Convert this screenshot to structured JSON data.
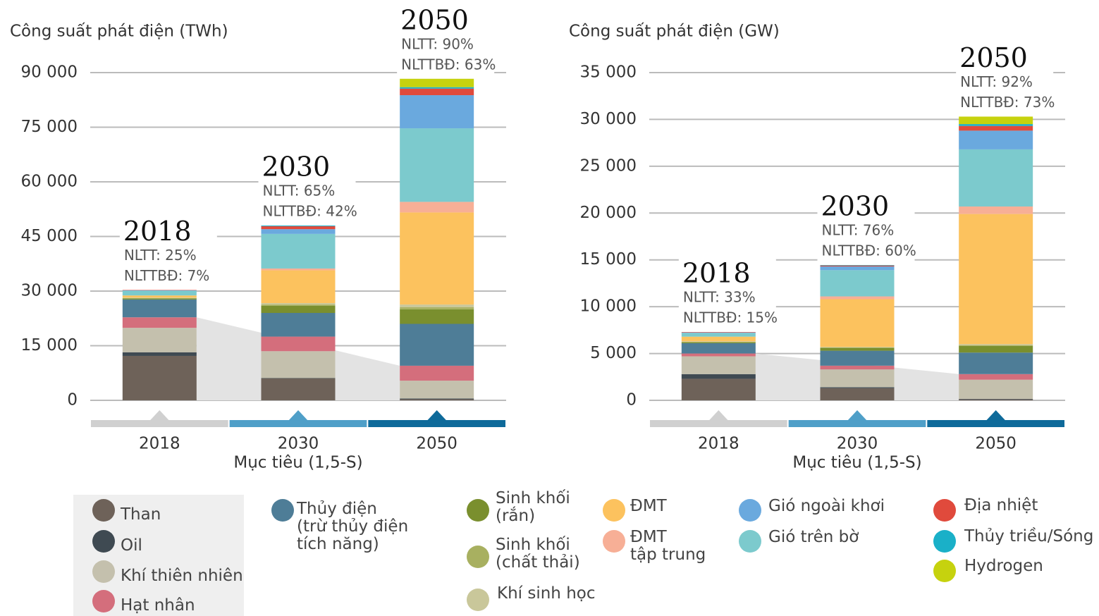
{
  "chart_data": [
    {
      "type": "bar",
      "stacked": true,
      "title": "Công suất phát điện (TWh)",
      "xlabel": "Mục tiêu (1,5-S)",
      "categories": [
        "2018",
        "2030",
        "2050"
      ],
      "ylim": [
        0,
        90000
      ],
      "yticks": [
        0,
        {
          "value": 15000,
          "label": "15 000"
        },
        {
          "value": 30000,
          "label": "30 000"
        },
        {
          "value": 45000,
          "label": "45 000"
        },
        {
          "value": 60000,
          "label": "60 000"
        },
        {
          "value": 75000,
          "label": "75 000"
        },
        {
          "value": 90000,
          "label": "90 000"
        }
      ],
      "grid": true,
      "annotations": [
        {
          "title": "2018",
          "lines": [
            "NLTT: 25%",
            "NLTTBĐ: 7%"
          ]
        },
        {
          "title": "2030",
          "lines": [
            "NLTT: 65%",
            "NLTTBĐ: 42%"
          ]
        },
        {
          "title": "2050",
          "lines": [
            "NLTT: 90%",
            "NLTTBĐ: 63%"
          ]
        }
      ],
      "series": [
        {
          "name": "Than",
          "color": "#6e6259",
          "values": [
            12200,
            6000,
            300
          ]
        },
        {
          "name": "Oil",
          "color": "#3f4a52",
          "values": [
            1000,
            100,
            200
          ]
        },
        {
          "name": "Khí thiên nhiên",
          "color": "#c4c0ad",
          "values": [
            6700,
            7400,
            4900
          ]
        },
        {
          "name": "Hạt nhân",
          "color": "#d46e7c",
          "values": [
            2900,
            4000,
            4100
          ]
        },
        {
          "name": "Thủy điện\n(trừ thủy điện\ntích năng)",
          "color": "#4e7d97",
          "values": [
            4900,
            6500,
            11500
          ]
        },
        {
          "name": "Sinh khối\n(rắn)",
          "color": "#7a8f2e",
          "values": [
            300,
            2000,
            4000
          ]
        },
        {
          "name": "Sinh khối\n(chất thải)",
          "color": "#a8b060",
          "values": [
            100,
            300,
            600
          ]
        },
        {
          "name": "Khí sinh học",
          "color": "#c9c79a",
          "values": [
            100,
            400,
            700
          ]
        },
        {
          "name": "ĐMT",
          "color": "#fcc25e",
          "values": [
            600,
            9000,
            25300
          ]
        },
        {
          "name": "ĐMT\ntập trung",
          "color": "#f7af96",
          "values": [
            0,
            500,
            2900
          ]
        },
        {
          "name": "Gió trên bờ",
          "color": "#7ccacd",
          "values": [
            1300,
            9500,
            20200
          ]
        },
        {
          "name": "Gió ngoài khơi",
          "color": "#6aa9de",
          "values": [
            100,
            1300,
            9100
          ]
        },
        {
          "name": "Địa nhiệt",
          "color": "#e04a3c",
          "values": [
            100,
            800,
            1800
          ]
        },
        {
          "name": "Thủy triều/Sóng",
          "color": "#1ab0c8",
          "values": [
            0,
            200,
            400
          ]
        },
        {
          "name": "Hydrogen",
          "color": "#c6d20e",
          "values": [
            0,
            0,
            2300
          ]
        }
      ]
    },
    {
      "type": "bar",
      "stacked": true,
      "title": "Công suất phát điện (GW)",
      "xlabel": "Mục tiêu (1,5-S)",
      "categories": [
        "2018",
        "2030",
        "2050"
      ],
      "ylim": [
        0,
        35000
      ],
      "yticks": [
        0,
        {
          "value": 5000,
          "label": "5 000"
        },
        {
          "value": 10000,
          "label": "10 000"
        },
        {
          "value": 15000,
          "label": "15 000"
        },
        {
          "value": 20000,
          "label": "20 000"
        },
        {
          "value": 25000,
          "label": "25 000"
        },
        {
          "value": 30000,
          "label": "30 000"
        },
        {
          "value": 35000,
          "label": "35 000"
        }
      ],
      "grid": true,
      "annotations": [
        {
          "title": "2018",
          "lines": [
            "NLTT: 33%",
            "NLTTBĐ: 15%"
          ]
        },
        {
          "title": "2030",
          "lines": [
            "NLTT: 76%",
            "NLTTBĐ: 60%"
          ]
        },
        {
          "title": "2050",
          "lines": [
            "NLTT: 92%",
            "NLTTBĐ: 73%"
          ]
        }
      ],
      "series": [
        {
          "values": [
            2300,
            1300,
            100
          ]
        },
        {
          "values": [
            500,
            100,
            50
          ]
        },
        {
          "values": [
            1900,
            1900,
            2050
          ]
        },
        {
          "values": [
            300,
            400,
            600
          ]
        },
        {
          "values": [
            1100,
            1600,
            2300
          ]
        },
        {
          "values": [
            100,
            300,
            700
          ]
        },
        {
          "values": [
            50,
            50,
            100
          ]
        },
        {
          "values": [
            50,
            50,
            100
          ]
        },
        {
          "values": [
            500,
            5100,
            13900
          ]
        },
        {
          "values": [
            0,
            300,
            800
          ]
        },
        {
          "values": [
            400,
            2800,
            6100
          ]
        },
        {
          "values": [
            50,
            400,
            2000
          ]
        },
        {
          "values": [
            50,
            100,
            500
          ]
        },
        {
          "values": [
            0,
            50,
            200
          ]
        },
        {
          "values": [
            0,
            0,
            800
          ]
        }
      ]
    }
  ]
}
